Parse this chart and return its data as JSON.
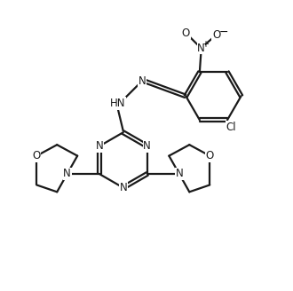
{
  "bg_color": "#ffffff",
  "line_color": "#1a1a1a",
  "bond_width": 1.6,
  "font_size": 8.5,
  "figsize": [
    3.3,
    3.28
  ],
  "dpi": 100,
  "xlim": [
    0,
    10
  ],
  "ylim": [
    0,
    10
  ]
}
